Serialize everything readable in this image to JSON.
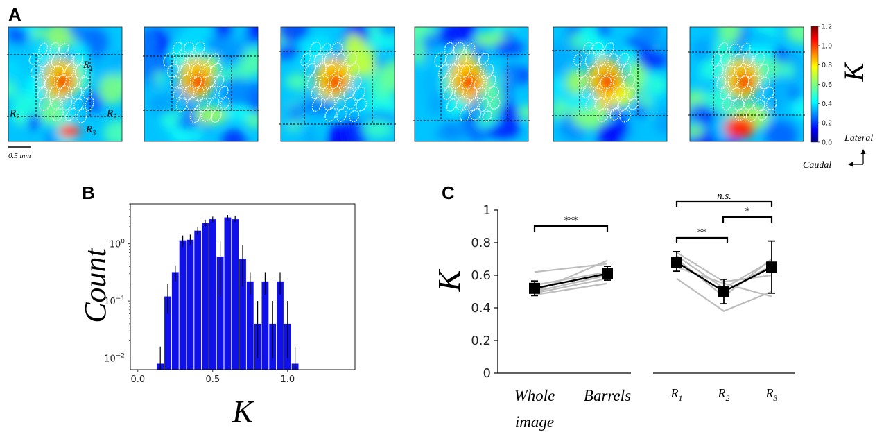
{
  "panels": {
    "A": "A",
    "B": "B",
    "C": "C"
  },
  "heatmaps": {
    "count": 6,
    "region_labels": {
      "r1": "R",
      "r1_sub": "1",
      "r2": "R",
      "r2_sub": "2",
      "r3": "R",
      "r3_sub": "3"
    },
    "scalebar_label": "0.5 mm",
    "colorbar": {
      "label": "K",
      "ticks": [
        "1.2",
        "1.0",
        "0.8",
        "0.6",
        "0.4",
        "0.2",
        "0.0"
      ],
      "colormap": "jet"
    },
    "orientation": {
      "lateral": "Lateral",
      "caudal": "Caudal"
    }
  },
  "chart_data": [
    {
      "type": "bar",
      "panel": "B",
      "xlabel": "K",
      "ylabel": "Count",
      "yscale": "log",
      "xlim": [
        -0.05,
        1.45
      ],
      "ylim_exp": [
        -2.2,
        0.7
      ],
      "xticks": [
        "0.0",
        "0.5",
        "1.0"
      ],
      "yticks": [
        {
          "base": "10",
          "exp": "0"
        },
        {
          "base": "10",
          "exp": "−1"
        },
        {
          "base": "10",
          "exp": "−2"
        }
      ],
      "color": "#1010e8",
      "bin_width": 0.05,
      "bins": [
        0.15,
        0.2,
        0.25,
        0.3,
        0.35,
        0.4,
        0.45,
        0.5,
        0.55,
        0.6,
        0.65,
        0.7,
        0.75,
        0.8,
        0.85,
        0.9,
        0.95,
        1.0,
        1.05
      ],
      "values": [
        0.008,
        0.12,
        0.32,
        1.15,
        1.18,
        1.7,
        2.3,
        2.7,
        0.6,
        2.9,
        2.7,
        0.55,
        0.22,
        0.04,
        0.22,
        0.04,
        0.22,
        0.04,
        0.008
      ],
      "err_low": [
        0.0007,
        0.06,
        0.22,
        0.9,
        0.95,
        1.45,
        2.0,
        2.4,
        0.12,
        2.6,
        2.4,
        0.18,
        0.13,
        0.01,
        0.13,
        0.01,
        0.13,
        0.01,
        0.0007
      ],
      "err_high": [
        0.016,
        0.2,
        0.42,
        1.4,
        1.45,
        1.95,
        2.65,
        3.0,
        1.1,
        3.2,
        3.05,
        0.95,
        0.32,
        0.1,
        0.32,
        0.1,
        0.32,
        0.1,
        0.016
      ]
    },
    {
      "type": "line",
      "panel": "C",
      "ylabel": "K",
      "ylim": [
        0,
        1
      ],
      "yticks": [
        "0",
        "0.2",
        "0.4",
        "0.6",
        "0.8",
        "1"
      ],
      "groups": [
        {
          "categories": [
            {
              "lines": [
                "Whole",
                "image"
              ]
            },
            {
              "lines": [
                "Barrels"
              ]
            }
          ],
          "mean": [
            0.52,
            0.61
          ],
          "err_low": [
            0.475,
            0.57
          ],
          "err_high": [
            0.565,
            0.655
          ],
          "individual": [
            [
              0.5,
              0.69
            ],
            [
              0.62,
              0.67
            ],
            [
              0.54,
              0.62
            ],
            [
              0.49,
              0.58
            ],
            [
              0.48,
              0.55
            ],
            [
              0.5,
              0.6
            ]
          ]
        },
        {
          "categories": [
            {
              "base": "R",
              "sub": "1"
            },
            {
              "base": "R",
              "sub": "2"
            },
            {
              "base": "R",
              "sub": "3"
            }
          ],
          "mean": [
            0.68,
            0.5,
            0.65
          ],
          "err_low": [
            0.625,
            0.425,
            0.49
          ],
          "err_high": [
            0.745,
            0.575,
            0.81
          ],
          "individual": [
            [
              0.72,
              0.52,
              0.69
            ],
            [
              0.7,
              0.47,
              0.7
            ],
            [
              0.58,
              0.38,
              0.5
            ],
            [
              0.65,
              0.55,
              0.47
            ],
            [
              0.68,
              0.5,
              0.66
            ],
            [
              0.74,
              0.56,
              0.6
            ]
          ]
        }
      ],
      "significance": [
        {
          "label": "***"
        },
        {
          "label": "n.s."
        },
        {
          "label": "**"
        },
        {
          "label": "*"
        }
      ]
    }
  ]
}
